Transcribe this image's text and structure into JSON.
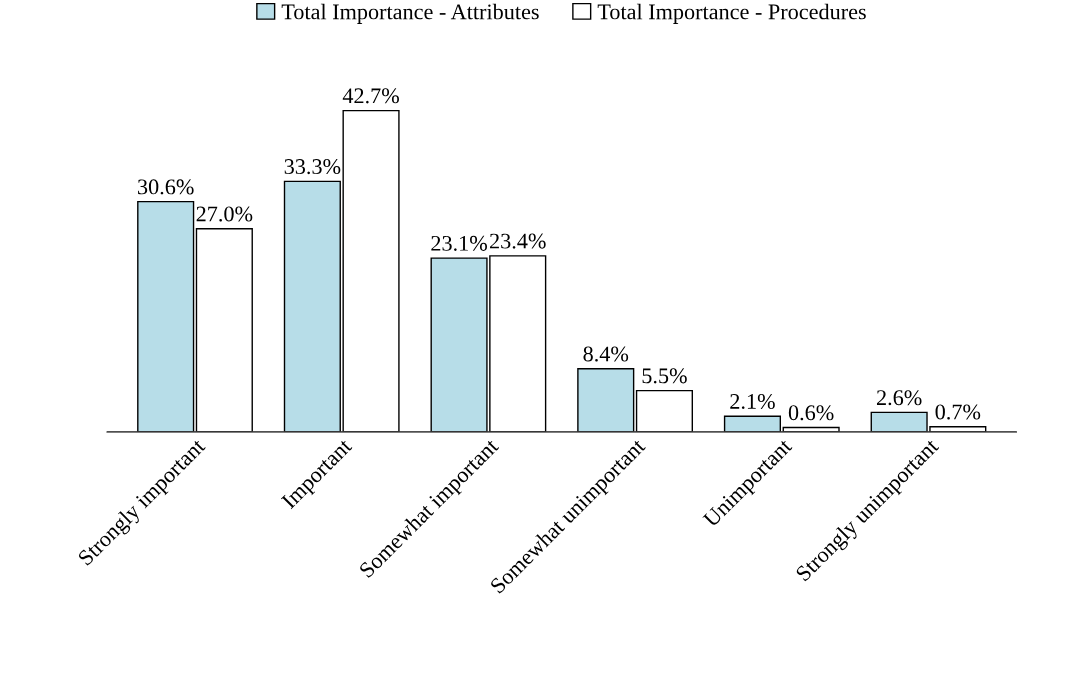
{
  "chart_data": {
    "type": "bar",
    "categories": [
      "Strongly important",
      "Important",
      "Somewhat important",
      "Somewhat unimportant",
      "Unimportant",
      "Strongly unimportant"
    ],
    "series": [
      {
        "name": "Total Importance - Attributes",
        "color": "#b7dde8",
        "values": [
          30.6,
          33.3,
          23.1,
          8.4,
          2.1,
          2.6
        ],
        "value_labels": [
          "30.6%",
          "33.3%",
          "23.1%",
          "8.4%",
          "2.1%",
          "2.6%"
        ]
      },
      {
        "name": "Total Importance - Procedures",
        "color": "#ffffff",
        "values": [
          27.0,
          42.7,
          23.4,
          5.5,
          0.6,
          0.7
        ],
        "value_labels": [
          "27.0%",
          "42.7%",
          "23.4%",
          "5.5%",
          "0.6%",
          "0.7%"
        ]
      }
    ],
    "legend": "top",
    "grid": false
  }
}
